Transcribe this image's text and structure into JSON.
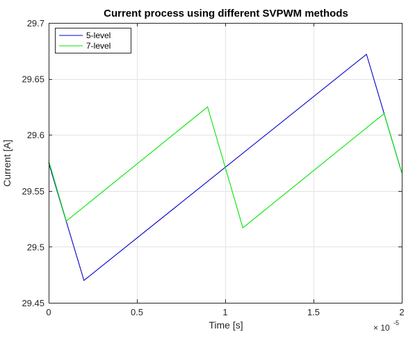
{
  "chart_data": {
    "type": "line",
    "title": "Current process using different SVPWM methods",
    "xlabel": "Time [s]",
    "ylabel": "Current [A]",
    "xlim": [
      0,
      2
    ],
    "ylim": [
      29.45,
      29.7
    ],
    "x_multiplier_label": {
      "base": "× 10",
      "exponent": "-5"
    },
    "x_ticks": [
      0,
      0.5,
      1,
      1.5,
      2
    ],
    "x_tick_labels": [
      "0",
      "0.5",
      "1",
      "1.5",
      "2"
    ],
    "y_ticks": [
      29.45,
      29.5,
      29.55,
      29.6,
      29.65,
      29.7
    ],
    "y_tick_labels": [
      "29.45",
      "29.5",
      "29.55",
      "29.6",
      "29.65",
      "29.7"
    ],
    "grid": true,
    "legend_position": "top-left",
    "series": [
      {
        "name": "5-level",
        "color": "#0000cc",
        "x": [
          0,
          0.2,
          1.8,
          2.0
        ],
        "y": [
          29.575,
          29.47,
          29.672,
          29.566
        ]
      },
      {
        "name": "7-level",
        "color": "#00e600",
        "x": [
          0,
          0.1,
          0.9,
          1.1,
          1.9,
          2.0
        ],
        "y": [
          29.577,
          29.523,
          29.625,
          29.517,
          29.619,
          29.566
        ]
      }
    ]
  }
}
